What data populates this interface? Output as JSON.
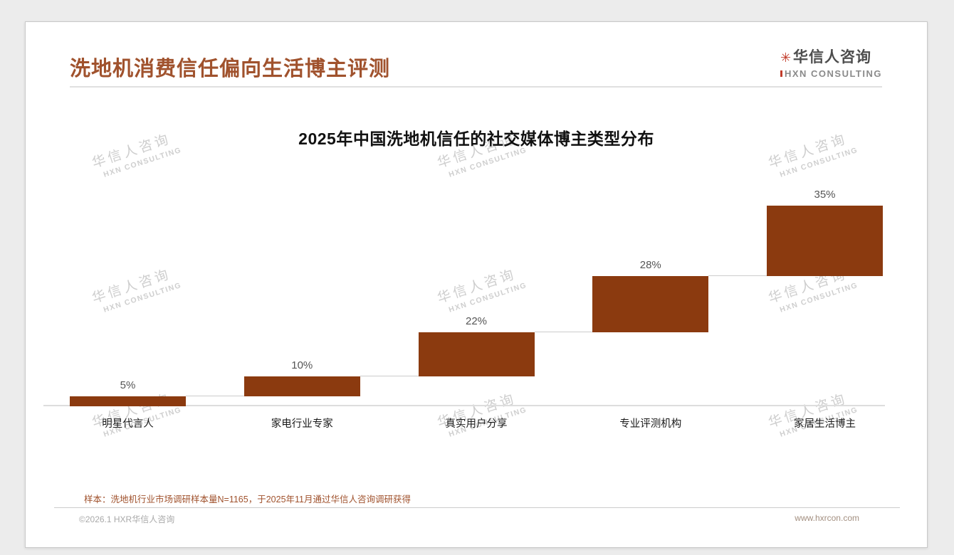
{
  "page": {
    "header": {
      "title": "洗地机消费信任偏向生活博主评测",
      "logo": {
        "name_cn": "华信人咨询",
        "name_en": "HXN CONSULTING",
        "icon": "red-asterisk-icon"
      }
    },
    "note": "样本：洗地机行业市场调研样本量N=1165，于2025年11月通过华信人咨询调研获得",
    "footer": {
      "left": "©2026.1 HXR华信人咨询",
      "right": "www.hxrcon.com"
    },
    "watermark": {
      "line1": "华信人咨询",
      "line2": "HXN CONSULTING"
    }
  },
  "chart_data": {
    "type": "bar",
    "variant": "staircase-waterfall",
    "title": "2025年中国洗地机信任的社交媒体博主类型分布",
    "categories": [
      "明星代言人",
      "家电行业专家",
      "真实用户分享",
      "专业评测机构",
      "家居生活博主"
    ],
    "values": [
      5,
      10,
      22,
      28,
      35
    ],
    "value_labels": [
      "5%",
      "10%",
      "22%",
      "28%",
      "35%"
    ],
    "unit": "%",
    "ylim": [
      0,
      100
    ],
    "stacking": "each bar starts at the cumulative total of the previous bars, ending at 100",
    "grid": false,
    "colors": {
      "bar": "#8B3A0F",
      "connector": "#cccccc",
      "axis": "#dddddd",
      "title": "#A0522D"
    }
  }
}
